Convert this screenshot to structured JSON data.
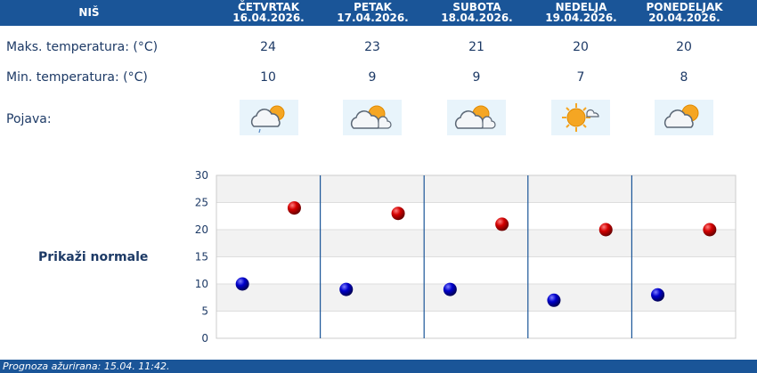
{
  "city": "NIŠ",
  "days": [
    {
      "name": "ČETVRTAK",
      "date": "16.04.2026.",
      "max": 24,
      "min": 10,
      "icon": "cloudy-sun-light-rain-icon"
    },
    {
      "name": "PETAK",
      "date": "17.04.2026.",
      "max": 23,
      "min": 9,
      "icon": "partly-cloudy-icon"
    },
    {
      "name": "SUBOTA",
      "date": "18.04.2026.",
      "max": 21,
      "min": 9,
      "icon": "partly-cloudy-icon"
    },
    {
      "name": "NEDELJA",
      "date": "19.04.2026.",
      "max": 20,
      "min": 7,
      "icon": "mostly-sunny-icon"
    },
    {
      "name": "PONEDELJAK",
      "date": "20.04.2026.",
      "max": 20,
      "min": 8,
      "icon": "partly-cloudy-icon"
    }
  ],
  "labels": {
    "max": "Maks. temperatura: (°C)",
    "min": "Min. temperatura: (°C)",
    "pojava": "Pojava:",
    "normale": "Prikaži normale"
  },
  "chart_data": {
    "type": "scatter",
    "categories": [
      "16.04.2026.",
      "17.04.2026.",
      "18.04.2026.",
      "19.04.2026.",
      "20.04.2026."
    ],
    "series": [
      {
        "values": [
          24,
          23,
          21,
          20,
          20
        ],
        "color": "#cc0000"
      },
      {
        "values": [
          10,
          9,
          9,
          7,
          8
        ],
        "color": "#0000cc"
      }
    ],
    "ylim": [
      0,
      30
    ],
    "yticks": [
      0,
      5,
      10,
      15,
      20,
      25,
      30
    ],
    "grid": true
  },
  "footer": "Prognoza ažurirana:  15.04. 11:42.",
  "colors": {
    "header": "#1a5598",
    "text": "#1d3a66",
    "max_dot": "#cc0000",
    "min_dot": "#0000cc"
  }
}
